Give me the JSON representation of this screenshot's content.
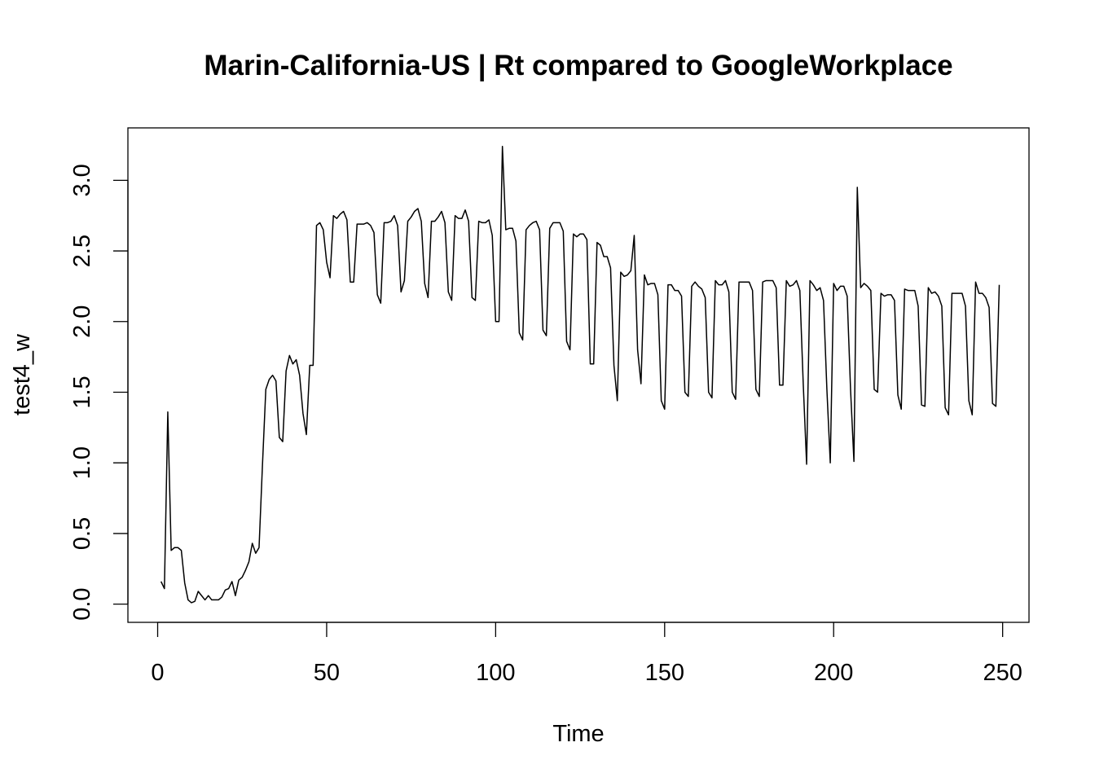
{
  "chart_data": {
    "type": "line",
    "title": "Marin-California-US | Rt compared to GoogleWorkplace",
    "xlabel": "Time",
    "ylabel": "test4_w",
    "xlim": [
      -8.8,
      257.8
    ],
    "ylim": [
      -0.129,
      3.371
    ],
    "x_ticks": [
      0,
      50,
      100,
      150,
      200,
      250
    ],
    "x_tick_labels": [
      "0",
      "50",
      "100",
      "150",
      "200",
      "250"
    ],
    "y_ticks": [
      0.0,
      0.5,
      1.0,
      1.5,
      2.0,
      2.5,
      3.0
    ],
    "y_tick_labels": [
      "0.0",
      "0.5",
      "1.0",
      "1.5",
      "2.0",
      "2.5",
      "3.0"
    ],
    "grid": false,
    "legend": "none",
    "line_color": "#000000",
    "series": [
      {
        "x_start": 1,
        "values": [
          0.16,
          0.11,
          1.36,
          0.38,
          0.4,
          0.4,
          0.38,
          0.15,
          0.03,
          0.01,
          0.02,
          0.09,
          0.06,
          0.03,
          0.06,
          0.03,
          0.03,
          0.03,
          0.05,
          0.1,
          0.11,
          0.16,
          0.06,
          0.17,
          0.19,
          0.24,
          0.3,
          0.43,
          0.36,
          0.4,
          0.98,
          1.52,
          1.59,
          1.62,
          1.58,
          1.18,
          1.15,
          1.65,
          1.76,
          1.7,
          1.73,
          1.62,
          1.35,
          1.2,
          1.69,
          1.69,
          2.68,
          2.7,
          2.65,
          2.42,
          2.31,
          2.75,
          2.73,
          2.76,
          2.78,
          2.72,
          2.28,
          2.28,
          2.69,
          2.69,
          2.69,
          2.7,
          2.68,
          2.63,
          2.19,
          2.13,
          2.7,
          2.7,
          2.71,
          2.75,
          2.68,
          2.21,
          2.29,
          2.71,
          2.74,
          2.78,
          2.8,
          2.71,
          2.27,
          2.17,
          2.71,
          2.71,
          2.74,
          2.78,
          2.7,
          2.21,
          2.15,
          2.75,
          2.73,
          2.73,
          2.79,
          2.71,
          2.17,
          2.15,
          2.71,
          2.7,
          2.7,
          2.72,
          2.61,
          2.0,
          2.0,
          3.24,
          2.65,
          2.66,
          2.66,
          2.57,
          1.92,
          1.87,
          2.65,
          2.68,
          2.7,
          2.71,
          2.65,
          1.94,
          1.9,
          2.66,
          2.7,
          2.7,
          2.7,
          2.64,
          1.86,
          1.8,
          2.62,
          2.6,
          2.62,
          2.62,
          2.58,
          1.7,
          1.7,
          2.56,
          2.54,
          2.46,
          2.46,
          2.38,
          1.69,
          1.44,
          2.35,
          2.32,
          2.33,
          2.36,
          2.61,
          1.8,
          1.56,
          2.33,
          2.26,
          2.27,
          2.27,
          2.19,
          1.44,
          1.38,
          2.26,
          2.26,
          2.22,
          2.22,
          2.18,
          1.5,
          1.47,
          2.25,
          2.28,
          2.25,
          2.23,
          2.17,
          1.5,
          1.46,
          2.29,
          2.26,
          2.26,
          2.29,
          2.21,
          1.5,
          1.45,
          2.28,
          2.28,
          2.28,
          2.28,
          2.22,
          1.52,
          1.47,
          2.28,
          2.29,
          2.29,
          2.29,
          2.24,
          1.55,
          1.55,
          2.29,
          2.25,
          2.26,
          2.29,
          2.22,
          1.56,
          0.99,
          2.29,
          2.26,
          2.22,
          2.24,
          2.15,
          1.52,
          1.0,
          2.27,
          2.22,
          2.25,
          2.25,
          2.18,
          1.52,
          1.01,
          2.95,
          2.24,
          2.27,
          2.25,
          2.22,
          1.52,
          1.5,
          2.2,
          2.18,
          2.19,
          2.19,
          2.15,
          1.48,
          1.38,
          2.23,
          2.22,
          2.22,
          2.22,
          2.11,
          1.41,
          1.4,
          2.24,
          2.2,
          2.21,
          2.18,
          2.11,
          1.39,
          1.34,
          2.2,
          2.2,
          2.2,
          2.2,
          2.11,
          1.44,
          1.34,
          2.28,
          2.2,
          2.2,
          2.17,
          2.1,
          1.42,
          1.4,
          2.26
        ]
      }
    ]
  }
}
